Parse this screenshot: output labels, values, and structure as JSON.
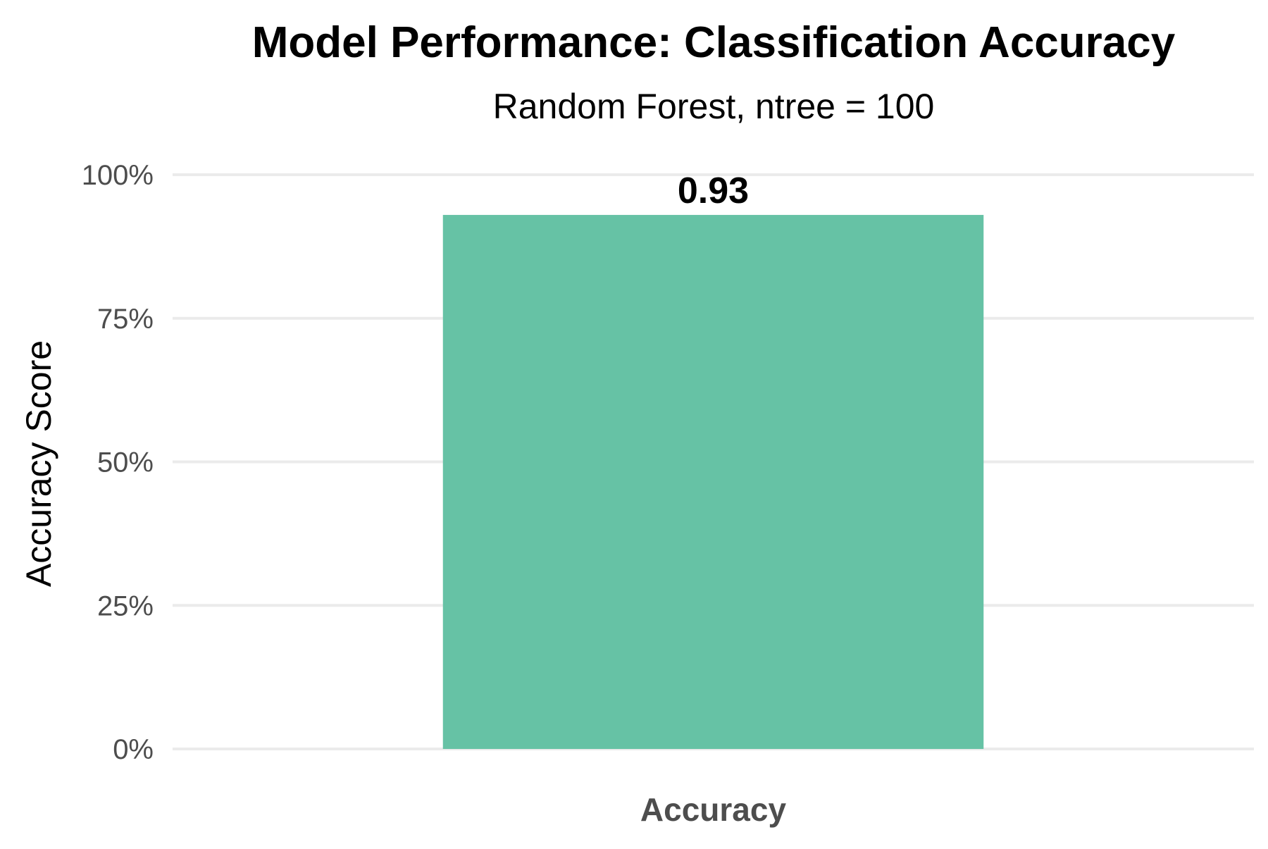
{
  "chart_data": {
    "type": "bar",
    "title": "Model Performance: Classification Accuracy",
    "subtitle": "Random Forest, ntree = 100",
    "xlabel": "",
    "ylabel": "Accuracy Score",
    "categories": [
      "Accuracy"
    ],
    "values": [
      0.93
    ],
    "data_labels": [
      "0.93"
    ],
    "ylim": [
      0,
      1
    ],
    "yticks": [
      0,
      0.25,
      0.5,
      0.75,
      1.0
    ],
    "ytick_labels": [
      "0%",
      "25%",
      "50%",
      "75%",
      "100%"
    ],
    "grid": "horizontal",
    "legend": "none",
    "colors": {
      "bar": "#66c2a5",
      "grid": "#ebebeb",
      "tick_text": "#4d4d4d"
    }
  }
}
